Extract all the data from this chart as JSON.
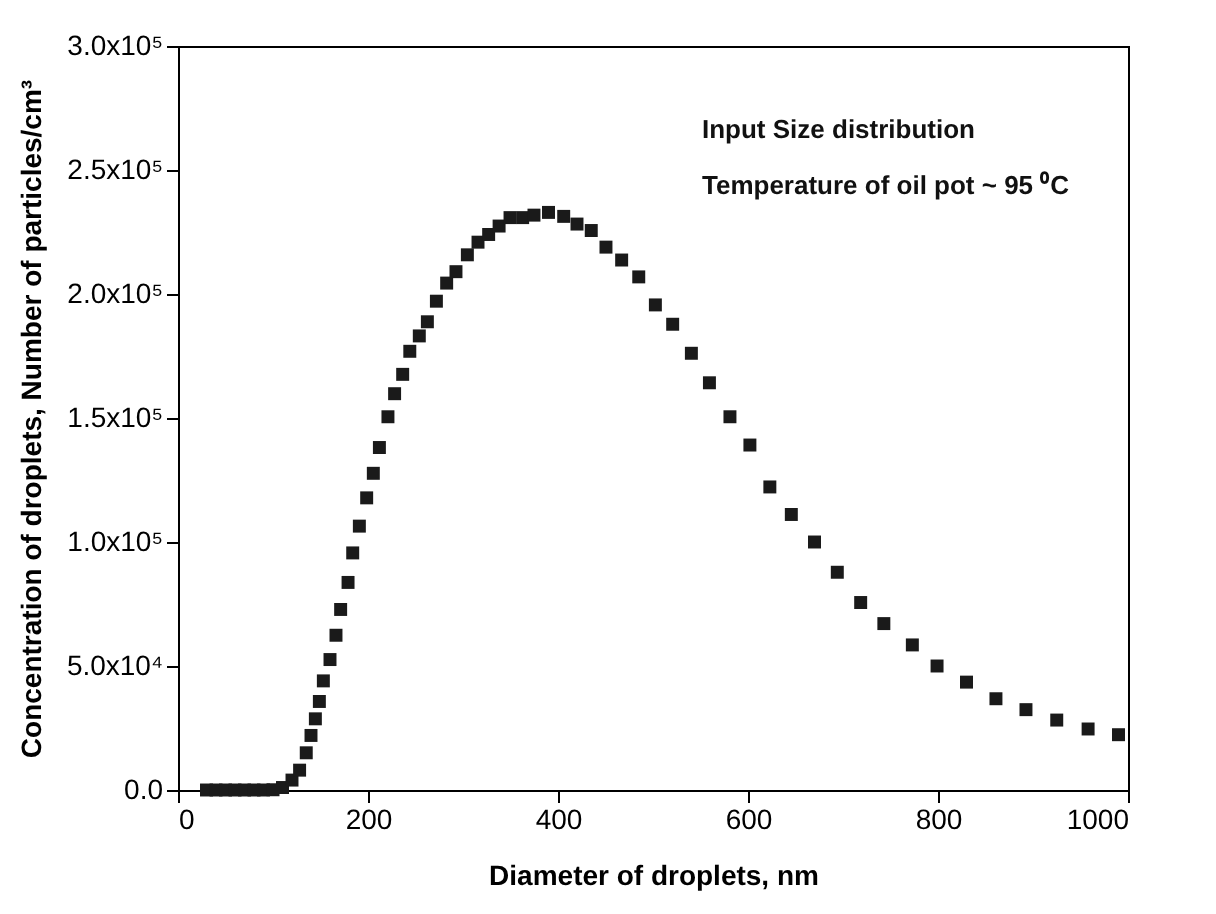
{
  "chart_data": {
    "type": "scatter",
    "xlabel": "Diameter of droplets, nm",
    "ylabel": "Concentration of droplets, Number of particles/cm³",
    "annotations": [
      "Input Size distribution",
      "Temperature of oil pot ~ 95 ⁰C"
    ],
    "x": [
      30,
      40,
      50,
      60,
      70,
      80,
      90,
      100,
      110,
      120,
      128,
      135,
      140,
      144.6,
      148.8,
      153,
      160,
      166.3,
      171.2,
      179,
      183.9,
      190.9,
      198.6,
      205.6,
      212,
      221,
      228,
      236.5,
      244,
      254,
      262.5,
      272,
      282.8,
      292.6,
      304.6,
      315.8,
      327,
      338,
      349.5,
      362.8,
      374.7,
      390,
      406,
      420,
      435,
      450.5,
      467,
      485,
      502.5,
      520.7,
      540.4,
      559.4,
      581,
      602,
      623,
      645.6,
      670,
      694,
      718.6,
      743,
      773,
      799,
      830,
      861,
      892.6,
      925,
      958,
      990
    ],
    "series": [
      {
        "color": "#1a1a1a",
        "values": [
          0,
          0,
          0,
          0,
          0,
          0,
          0,
          100,
          1000,
          4000,
          8000,
          15000,
          22000,
          28700,
          35700,
          44000,
          52600,
          62400,
          72800,
          83700,
          95600,
          106400,
          117800,
          127700,
          138100,
          150500,
          159800,
          167600,
          176900,
          183100,
          188800,
          197100,
          204400,
          209000,
          215800,
          220900,
          224000,
          227400,
          230800,
          230800,
          231800,
          232900,
          231300,
          228200,
          225600,
          218900,
          213700,
          206900,
          195600,
          187800,
          176100,
          164200,
          150500,
          139100,
          122200,
          111100,
          100000,
          87800,
          75600,
          67100,
          58500,
          50000,
          43500,
          36800,
          32400,
          28200,
          24600,
          22300
        ]
      }
    ],
    "xlim": [
      0,
      1000
    ],
    "xticks": [
      0,
      200,
      400,
      600,
      800,
      1000
    ],
    "ylim": [
      0,
      300000
    ],
    "yticks": [
      {
        "value": 0,
        "label": "0.0"
      },
      {
        "value": 50000,
        "label": "5.0x10⁴"
      },
      {
        "value": 100000,
        "label": "1.0x10⁵"
      },
      {
        "value": 150000,
        "label": "1.5x10⁵"
      },
      {
        "value": 200000,
        "label": "2.0x10⁵"
      },
      {
        "value": 250000,
        "label": "2.5x10⁵"
      },
      {
        "value": 300000,
        "label": "3.0x10⁵"
      }
    ],
    "grid": false,
    "marker": "square"
  }
}
